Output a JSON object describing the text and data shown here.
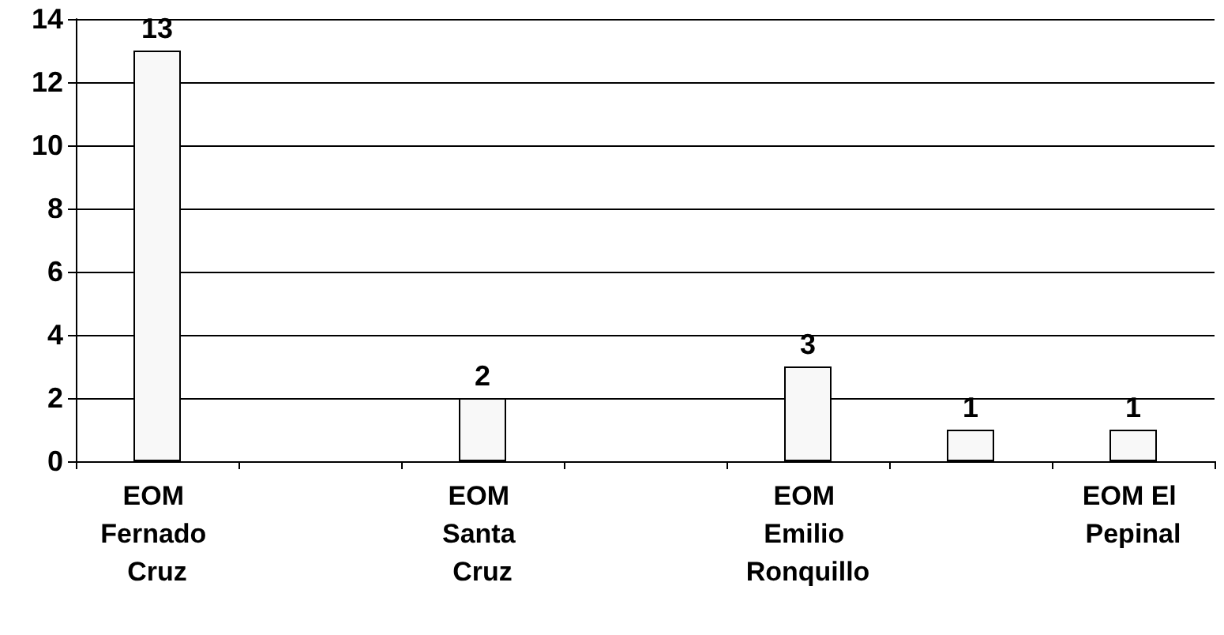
{
  "chart_data": {
    "type": "bar",
    "categories": [
      "EOM Fernado Cruz",
      null,
      "EOM Santa Cruz",
      null,
      "EOM Emilio Ronquillo",
      null,
      "EOM El Pepinal"
    ],
    "values": [
      13,
      null,
      2,
      null,
      3,
      1,
      1
    ],
    "color": "#f8f8f8",
    "ylim": [
      0,
      14
    ],
    "yticks": [
      0,
      2,
      4,
      6,
      8,
      10,
      12,
      14
    ],
    "grid": "y",
    "data_labels": true
  }
}
